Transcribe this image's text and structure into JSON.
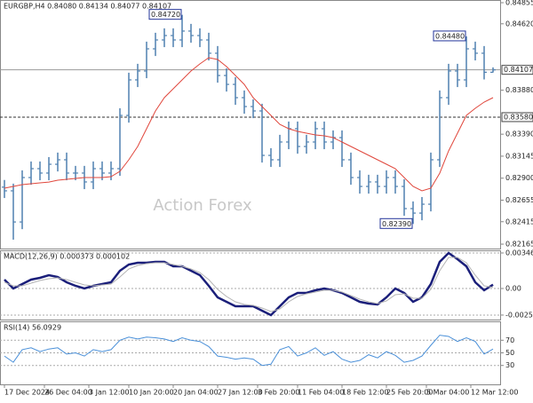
{
  "chart_data": [
    {
      "type": "ohlc",
      "title": "EURGBP,H4 0.84080 0.84134 0.84077 0.84107",
      "watermark": "Action Forex",
      "xlim": [
        -0.5,
        55.8
      ],
      "ylim": [
        0.82116,
        0.84885
      ],
      "yticks": [
        {
          "value": 0.84855,
          "label": "0.84855"
        },
        {
          "value": 0.8462,
          "label": "0.84620"
        },
        {
          "value": 0.8388,
          "label": "0.83880"
        },
        {
          "value": 0.8339,
          "label": "0.83390"
        },
        {
          "value": 0.83145,
          "label": "0.83145"
        },
        {
          "value": 0.829,
          "label": "0.82900"
        },
        {
          "value": 0.82655,
          "label": "0.82655"
        },
        {
          "value": 0.82415,
          "label": "0.82415"
        },
        {
          "value": 0.82165,
          "label": "0.82165"
        }
      ],
      "ohlc": {
        "color": "#4f80b0",
        "open": [
          0.828,
          0.82759,
          0.82412,
          0.82907,
          0.83006,
          0.82957,
          0.83055,
          0.83105,
          0.82957,
          0.82957,
          0.82858,
          0.83006,
          0.82957,
          0.83006,
          0.83599,
          0.83995,
          0.84094,
          0.84341,
          0.8444,
          0.84489,
          0.8444,
          0.84539,
          0.84489,
          0.8444,
          0.84292,
          0.84044,
          0.83945,
          0.83797,
          0.83698,
          0.83649,
          0.83154,
          0.83105,
          0.83303,
          0.83451,
          0.83253,
          0.83303,
          0.83451,
          0.83303,
          0.83352,
          0.83105,
          0.82907,
          0.82808,
          0.82858,
          0.82808,
          0.82907,
          0.82808,
          0.82561,
          0.82511,
          0.8261,
          0.83105,
          0.83797,
          0.84094,
          0.83995,
          0.84341,
          0.84292,
          0.8408
        ],
        "high": [
          0.8288,
          0.82839,
          0.82987,
          0.83086,
          0.83086,
          0.83135,
          0.83185,
          0.83185,
          0.83037,
          0.83037,
          0.83086,
          0.83086,
          0.83086,
          0.83679,
          0.84075,
          0.84174,
          0.84421,
          0.8452,
          0.84569,
          0.84569,
          0.8472,
          0.84619,
          0.84569,
          0.8452,
          0.84372,
          0.84124,
          0.84025,
          0.83877,
          0.83778,
          0.83729,
          0.83234,
          0.83383,
          0.83531,
          0.83531,
          0.83383,
          0.83531,
          0.83531,
          0.83432,
          0.83432,
          0.83185,
          0.82987,
          0.82938,
          0.82938,
          0.82987,
          0.82987,
          0.82888,
          0.82641,
          0.8269,
          0.83185,
          0.83877,
          0.84174,
          0.84174,
          0.8448,
          0.84421,
          0.84372,
          0.84134
        ],
        "low": [
          0.82679,
          0.82215,
          0.82332,
          0.82827,
          0.82877,
          0.82877,
          0.82975,
          0.82877,
          0.82877,
          0.82778,
          0.82778,
          0.82877,
          0.82877,
          0.82926,
          0.83519,
          0.83915,
          0.84014,
          0.84261,
          0.8436,
          0.8436,
          0.8436,
          0.84409,
          0.8436,
          0.84212,
          0.83964,
          0.83865,
          0.83717,
          0.83618,
          0.83569,
          0.83074,
          0.83025,
          0.83025,
          0.83223,
          0.83173,
          0.83173,
          0.83223,
          0.83223,
          0.83223,
          0.83025,
          0.82827,
          0.82728,
          0.82728,
          0.82728,
          0.82728,
          0.82728,
          0.82481,
          0.8239,
          0.82431,
          0.8253,
          0.83025,
          0.83717,
          0.83915,
          0.83915,
          0.84212,
          0.84,
          0.84077
        ],
        "close": [
          0.82759,
          0.82412,
          0.82907,
          0.83006,
          0.82957,
          0.83055,
          0.83105,
          0.82957,
          0.82957,
          0.82858,
          0.83006,
          0.82957,
          0.83006,
          0.83599,
          0.83995,
          0.84094,
          0.84341,
          0.8444,
          0.84489,
          0.8444,
          0.84539,
          0.84489,
          0.8444,
          0.84292,
          0.84044,
          0.83945,
          0.83797,
          0.83698,
          0.83649,
          0.83154,
          0.83105,
          0.83303,
          0.83451,
          0.83253,
          0.83303,
          0.83451,
          0.83303,
          0.83352,
          0.83105,
          0.82907,
          0.82808,
          0.82858,
          0.82808,
          0.82907,
          0.82808,
          0.82561,
          0.82511,
          0.8261,
          0.83105,
          0.83797,
          0.84094,
          0.83995,
          0.84341,
          0.84292,
          0.8408,
          0.84107
        ]
      },
      "series": [
        {
          "color": "#e0473c",
          "values": [
            0.82788,
            0.82808,
            0.82828,
            0.82838,
            0.82848,
            0.82857,
            0.82877,
            0.82887,
            0.82897,
            0.82907,
            0.82907,
            0.82907,
            0.82917,
            0.82976,
            0.83105,
            0.83253,
            0.83451,
            0.83649,
            0.83797,
            0.83896,
            0.83995,
            0.84094,
            0.84173,
            0.84242,
            0.84222,
            0.84143,
            0.84044,
            0.83945,
            0.83797,
            0.83698,
            0.83599,
            0.835,
            0.83451,
            0.83421,
            0.83402,
            0.83382,
            0.83372,
            0.83352,
            0.83303,
            0.83253,
            0.83204,
            0.83154,
            0.83105,
            0.83055,
            0.83006,
            0.82907,
            0.82808,
            0.82759,
            0.82788,
            0.82956,
            0.83204,
            0.83402,
            0.83599,
            0.83679,
            0.83748,
            0.83797
          ]
        }
      ],
      "levels": [
        {
          "value": 0.84107,
          "label": "0.84107",
          "style": "solid"
        },
        {
          "value": 0.8358,
          "label": "0.83580",
          "style": "dashed"
        }
      ],
      "annotations": [
        {
          "value": 0.8472,
          "label": "0.84720"
        },
        {
          "value": 0.8448,
          "label": "0.84480"
        },
        {
          "value": 0.8239,
          "label": "0.82390"
        }
      ]
    },
    {
      "type": "line",
      "title": "MACD(12,26,9) 0.000373 0.000102",
      "grid": true,
      "xlim": [
        -0.5,
        55.8
      ],
      "ylim": [
        -0.00303,
        0.00372
      ],
      "yticks": [
        0.003462,
        {
          "value": 0,
          "label": "0.00"
        },
        -0.002593
      ],
      "series": [
        {
          "color": "#1b1f7a",
          "width": 2.5,
          "values": [
            0.000865,
            0,
            0.000433,
            0.000865,
            0.001038,
            0.001298,
            0.001125,
            0.000606,
            0.00026,
            0,
            0.00026,
            0.000433,
            0.000606,
            0.00173,
            0.002336,
            0.002509,
            0.002509,
            0.002595,
            0.002595,
            0.002163,
            0.002163,
            0.00173,
            0.001298,
            0.00026,
            -0.000865,
            -0.001298,
            -0.00173,
            -0.00173,
            -0.00173,
            -0.002163,
            -0.002595,
            -0.00173,
            -0.000865,
            -0.000433,
            -0.000433,
            -0.000173,
            0,
            -0.000173,
            -0.000433,
            -0.000865,
            -0.001298,
            -0.001471,
            -0.001557,
            -0.000865,
            0,
            -0.000433,
            -0.001298,
            -0.000865,
            0.000433,
            0.002595,
            0.00346,
            0.002855,
            0.002163,
            0.000606,
            -0.000173,
            0.000373
          ]
        },
        {
          "color": "#b4b4b4",
          "width": 1,
          "values": [
            0.000606,
            0.00026,
            0.00026,
            0.000519,
            0.000779,
            0.000952,
            0.001038,
            0.000865,
            0.000606,
            0.000346,
            0.00026,
            0.000346,
            0.000433,
            0.001125,
            0.001903,
            0.002249,
            0.002422,
            0.002509,
            0.002509,
            0.002336,
            0.002163,
            0.001903,
            0.001557,
            0.000865,
            -8.7e-05,
            -0.000779,
            -0.001298,
            -0.001557,
            -0.001644,
            -0.001903,
            -0.002249,
            -0.00199,
            -0.001298,
            -0.000779,
            -0.000519,
            -0.000346,
            -0.000173,
            -0.000173,
            -0.000346,
            -0.000692,
            -0.001038,
            -0.001298,
            -0.001471,
            -0.001211,
            -0.000606,
            -0.000519,
            -0.000952,
            -0.000952,
            -8.7e-05,
            0.00173,
            0.003028,
            0.003028,
            0.002509,
            0.001298,
            0.00026,
            0.000102
          ]
        }
      ]
    },
    {
      "type": "line",
      "title": "RSI(14) 56.0929",
      "grid": true,
      "xlim": [
        -0.5,
        55.8
      ],
      "ylim": [
        0,
        100
      ],
      "yticks": [
        70,
        50,
        30
      ],
      "xticks": [
        {
          "value": 0,
          "label": "17 Dec 2024"
        },
        {
          "value": 4.5,
          "label": "26 Dec 04:00"
        },
        {
          "value": 9.5,
          "label": "3 Jan 12:00"
        },
        {
          "value": 14,
          "label": "10 Jan 20:00"
        },
        {
          "value": 19,
          "label": "20 Jan 04:00"
        },
        {
          "value": 24,
          "label": "27 Jan 12:00"
        },
        {
          "value": 28.5,
          "label": "3 Feb 20:00"
        },
        {
          "value": 33,
          "label": "11 Feb 04:00"
        },
        {
          "value": 38,
          "label": "18 Feb 12:00"
        },
        {
          "value": 43,
          "label": "25 Feb 20:00"
        },
        {
          "value": 47.5,
          "label": "5 Mar 04:00"
        },
        {
          "value": 52.5,
          "label": "12 Mar 12:00"
        }
      ],
      "series": [
        {
          "color": "#4a90d9",
          "width": 1,
          "values": [
            45,
            35,
            55,
            58,
            52,
            56,
            58,
            48,
            50,
            45,
            55,
            52,
            55,
            70,
            75,
            72,
            75,
            74,
            72,
            68,
            74,
            70,
            68,
            60,
            45,
            43,
            40,
            42,
            40,
            30,
            32,
            55,
            60,
            45,
            50,
            58,
            46,
            52,
            40,
            35,
            38,
            47,
            42,
            52,
            46,
            35,
            38,
            45,
            62,
            78,
            76,
            68,
            74,
            68,
            48,
            56.0929
          ]
        }
      ]
    }
  ]
}
